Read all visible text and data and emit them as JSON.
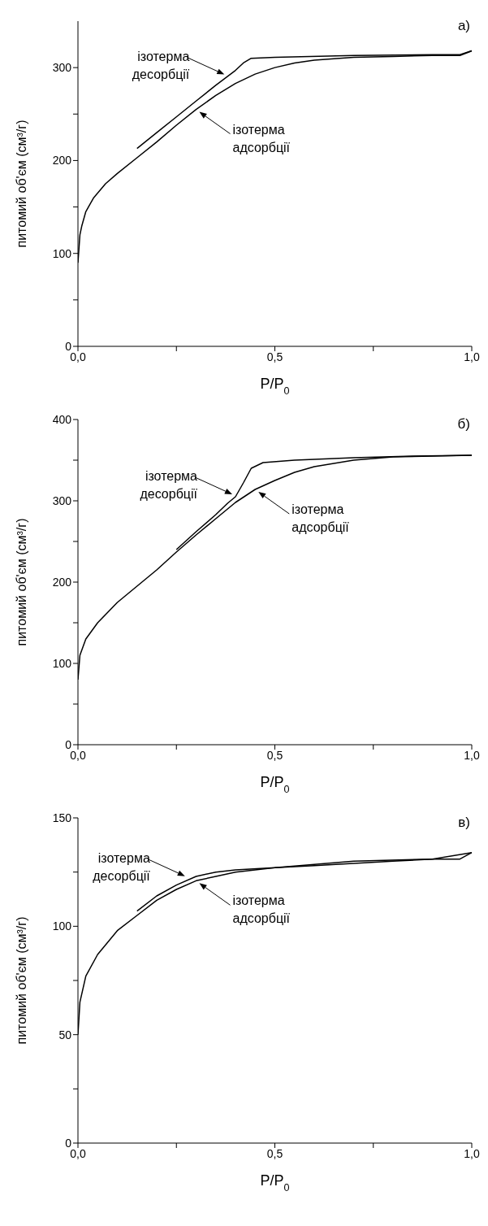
{
  "chart_data": [
    {
      "type": "line",
      "title": "а)",
      "xlabel": "P/P$_{0}$",
      "ylabel": "питомий об'єм  (см³/г)",
      "xlim": [
        0,
        1
      ],
      "xticks": [
        {
          "value": 0,
          "label": "0,0"
        },
        {
          "value": 0.25,
          "label": null
        },
        {
          "value": 0.5,
          "label": "0,5"
        },
        {
          "value": 0.75,
          "label": null
        },
        {
          "value": 1,
          "label": "1,0"
        }
      ],
      "ylim": [
        0,
        350
      ],
      "yticks": [
        0,
        {
          "value": 50,
          "label": null
        },
        100,
        {
          "value": 150,
          "label": null
        },
        200,
        {
          "value": 250,
          "label": null
        },
        300
      ],
      "series": [
        {
          "color": "#000000",
          "x": [
            0,
            0.005,
            0.01,
            0.02,
            0.04,
            0.07,
            0.1,
            0.15,
            0.2,
            0.25,
            0.3,
            0.35,
            0.4,
            0.45,
            0.5,
            0.55,
            0.6,
            0.7,
            0.8,
            0.9,
            0.97,
            1.0
          ],
          "values": [
            90,
            120,
            130,
            145,
            160,
            175,
            186,
            203,
            220,
            238,
            255,
            270,
            283,
            293,
            300,
            305,
            308,
            311,
            312,
            313,
            313,
            318
          ]
        },
        {
          "color": "#000000",
          "x": [
            1.0,
            0.97,
            0.9,
            0.7,
            0.5,
            0.44,
            0.42,
            0.4,
            0.35,
            0.3,
            0.25,
            0.2,
            0.15
          ],
          "values": [
            318,
            314,
            314,
            313,
            311,
            310,
            305,
            297,
            281,
            264,
            247,
            230,
            213
          ]
        }
      ],
      "annotations": [
        {
          "text": "ізотерма десорбції",
          "x": 0.38,
          "y": 290
        },
        {
          "text": "ізотерма адсорбції",
          "x": 0.3,
          "y": 255
        }
      ]
    },
    {
      "type": "line",
      "title": "б)",
      "xlabel": "P/P$_{0}$",
      "ylabel": "питомий об'єм  (см³/г)",
      "xlim": [
        0,
        1
      ],
      "xticks": [
        {
          "value": 0,
          "label": "0,0"
        },
        {
          "value": 0.25,
          "label": null
        },
        {
          "value": 0.5,
          "label": "0,5"
        },
        {
          "value": 0.75,
          "label": null
        },
        {
          "value": 1,
          "label": "1,0"
        }
      ],
      "ylim": [
        0,
        400
      ],
      "yticks": [
        0,
        {
          "value": 50,
          "label": null
        },
        100,
        {
          "value": 150,
          "label": null
        },
        200,
        {
          "value": 250,
          "label": null
        },
        300,
        {
          "value": 350,
          "label": null
        },
        400
      ],
      "series": [
        {
          "color": "#000000",
          "x": [
            0,
            0.005,
            0.02,
            0.05,
            0.1,
            0.15,
            0.2,
            0.25,
            0.3,
            0.35,
            0.4,
            0.45,
            0.5,
            0.55,
            0.6,
            0.7,
            0.8,
            0.9,
            1.0
          ],
          "values": [
            80,
            110,
            130,
            150,
            175,
            195,
            215,
            237,
            258,
            278,
            298,
            314,
            325,
            335,
            342,
            350,
            354,
            355,
            356
          ]
        },
        {
          "color": "#000000",
          "x": [
            1.0,
            0.85,
            0.7,
            0.55,
            0.47,
            0.44,
            0.42,
            0.4,
            0.38,
            0.35,
            0.3,
            0.25
          ],
          "values": [
            356,
            355,
            353,
            350,
            347,
            340,
            322,
            305,
            297,
            283,
            262,
            240
          ]
        }
      ],
      "annotations": [
        {
          "text": "ізотерма десорбції",
          "x": 0.4,
          "y": 305
        },
        {
          "text": "ізотерма адсорбції",
          "x": 0.45,
          "y": 314
        }
      ]
    },
    {
      "type": "line",
      "title": "в)",
      "xlabel": "P/P$_{0}$",
      "ylabel": "питомий об'єм  (см³/г)",
      "xlim": [
        0,
        1
      ],
      "xticks": [
        {
          "value": 0,
          "label": "0,0"
        },
        {
          "value": 0.25,
          "label": null
        },
        {
          "value": 0.5,
          "label": "0,5"
        },
        {
          "value": 0.75,
          "label": null
        },
        {
          "value": 1,
          "label": "1,0"
        }
      ],
      "ylim": [
        0,
        150
      ],
      "yticks": [
        0,
        {
          "value": 25,
          "label": null
        },
        50,
        {
          "value": 75,
          "label": null
        },
        100,
        {
          "value": 125,
          "label": null
        },
        150
      ],
      "series": [
        {
          "color": "#000000",
          "x": [
            0,
            0.005,
            0.02,
            0.05,
            0.1,
            0.15,
            0.2,
            0.25,
            0.3,
            0.35,
            0.4,
            0.5,
            0.6,
            0.7,
            0.8,
            0.9,
            0.97,
            1.0
          ],
          "values": [
            50,
            65,
            77,
            87,
            98,
            105,
            112,
            117,
            121,
            123,
            125,
            127,
            128,
            129,
            130,
            131,
            131,
            134
          ]
        },
        {
          "color": "#000000",
          "x": [
            1.0,
            0.9,
            0.7,
            0.5,
            0.4,
            0.35,
            0.3,
            0.25,
            0.2,
            0.15
          ],
          "values": [
            134,
            131,
            130,
            127,
            126,
            125,
            123,
            119,
            114,
            107
          ]
        }
      ],
      "annotations": [
        {
          "text": "ізотерма десорбції",
          "x": 0.28,
          "y": 122
        },
        {
          "text": "ізотерма адсорбції",
          "x": 0.3,
          "y": 121
        }
      ]
    }
  ]
}
